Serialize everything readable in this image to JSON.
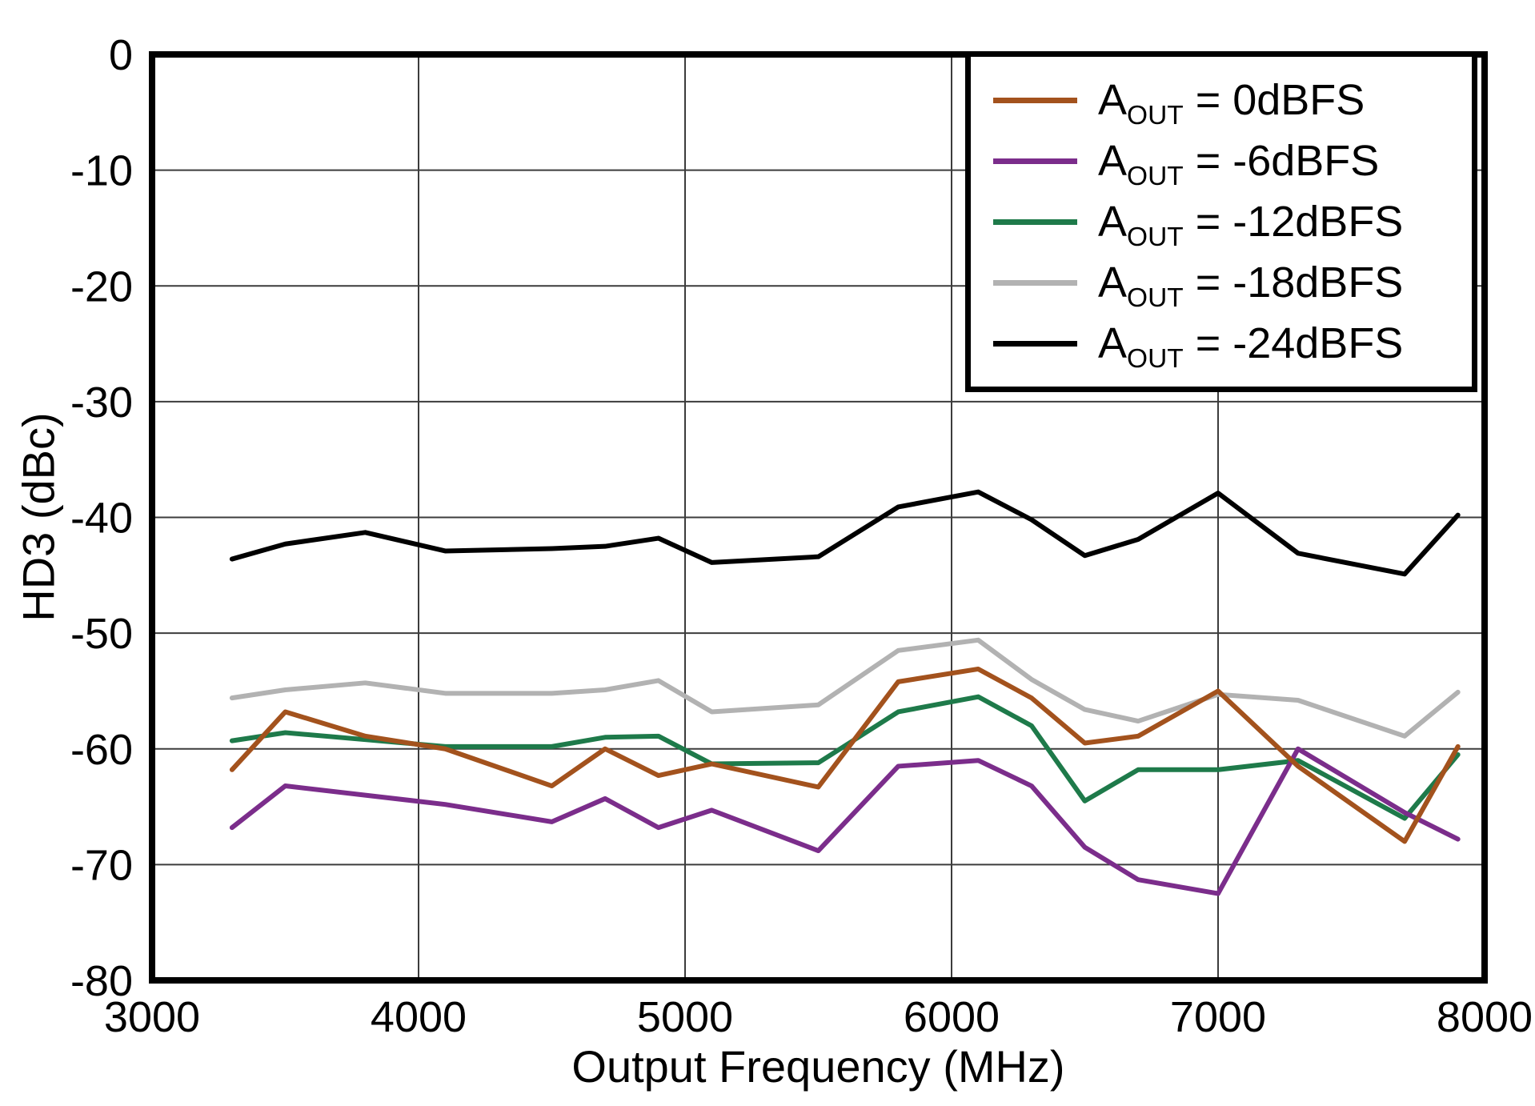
{
  "chart_data": {
    "type": "line",
    "title": "",
    "xlabel": "Output Frequency (MHz)",
    "ylabel": "HD3 (dBc)",
    "xlim": [
      3000,
      8000
    ],
    "ylim": [
      -80,
      0
    ],
    "x_ticks": [
      3000,
      4000,
      5000,
      6000,
      7000,
      8000
    ],
    "y_ticks": [
      0,
      -10,
      -20,
      -30,
      -40,
      -50,
      -60,
      -70,
      -80
    ],
    "grid": true,
    "legend_position": "top-right",
    "x": [
      3300,
      3500,
      3800,
      4100,
      4500,
      4700,
      4900,
      5100,
      5500,
      5800,
      6100,
      6300,
      6500,
      6700,
      7000,
      7300,
      7700,
      7900
    ],
    "series": [
      {
        "name": "AOUT = 0dBFS",
        "color": "#A3521D",
        "values": [
          -61.8,
          -56.8,
          -58.9,
          -60.0,
          -63.2,
          -60.0,
          -62.3,
          -61.3,
          -63.3,
          -54.2,
          -53.1,
          -55.6,
          -59.5,
          -58.9,
          -55.0,
          -61.5,
          -68.0,
          -59.8
        ]
      },
      {
        "name": "AOUT = -6dBFS",
        "color": "#7B2D8B",
        "values": [
          -66.8,
          -63.2,
          -64.0,
          -64.8,
          -66.3,
          -64.3,
          -66.8,
          -65.3,
          -68.8,
          -61.5,
          -61.0,
          -63.2,
          -68.5,
          -71.3,
          -72.5,
          -60.0,
          -65.5,
          -67.8
        ]
      },
      {
        "name": "AOUT = -12dBFS",
        "color": "#1E7A4A",
        "values": [
          -59.3,
          -58.6,
          -59.2,
          -59.8,
          -59.8,
          -59.0,
          -58.9,
          -61.3,
          -61.2,
          -56.8,
          -55.5,
          -58.0,
          -64.5,
          -61.8,
          -61.8,
          -61.0,
          -66.0,
          -60.5
        ]
      },
      {
        "name": "AOUT = -18dBFS",
        "color": "#B2B2B2",
        "values": [
          -55.6,
          -54.9,
          -54.3,
          -55.2,
          -55.2,
          -54.9,
          -54.1,
          -56.8,
          -56.2,
          -51.5,
          -50.6,
          -54.0,
          -56.6,
          -57.6,
          -55.3,
          -55.8,
          -58.9,
          -55.1
        ]
      },
      {
        "name": "AOUT = -24dBFS",
        "color": "#000000",
        "values": [
          -43.6,
          -42.3,
          -41.3,
          -42.9,
          -42.7,
          -42.5,
          -41.8,
          -43.9,
          -43.4,
          -39.1,
          -37.8,
          -40.2,
          -43.3,
          -41.9,
          -37.9,
          -43.1,
          -44.9,
          -39.8
        ]
      }
    ]
  },
  "legend": {
    "entries": [
      {
        "pre": "A",
        "sub": "OUT",
        "post": " = 0dBFS"
      },
      {
        "pre": "A",
        "sub": "OUT",
        "post": " = -6dBFS"
      },
      {
        "pre": "A",
        "sub": "OUT",
        "post": " = -12dBFS"
      },
      {
        "pre": "A",
        "sub": "OUT",
        "post": " = -18dBFS"
      },
      {
        "pre": "A",
        "sub": "OUT",
        "post": " = -24dBFS"
      }
    ]
  }
}
